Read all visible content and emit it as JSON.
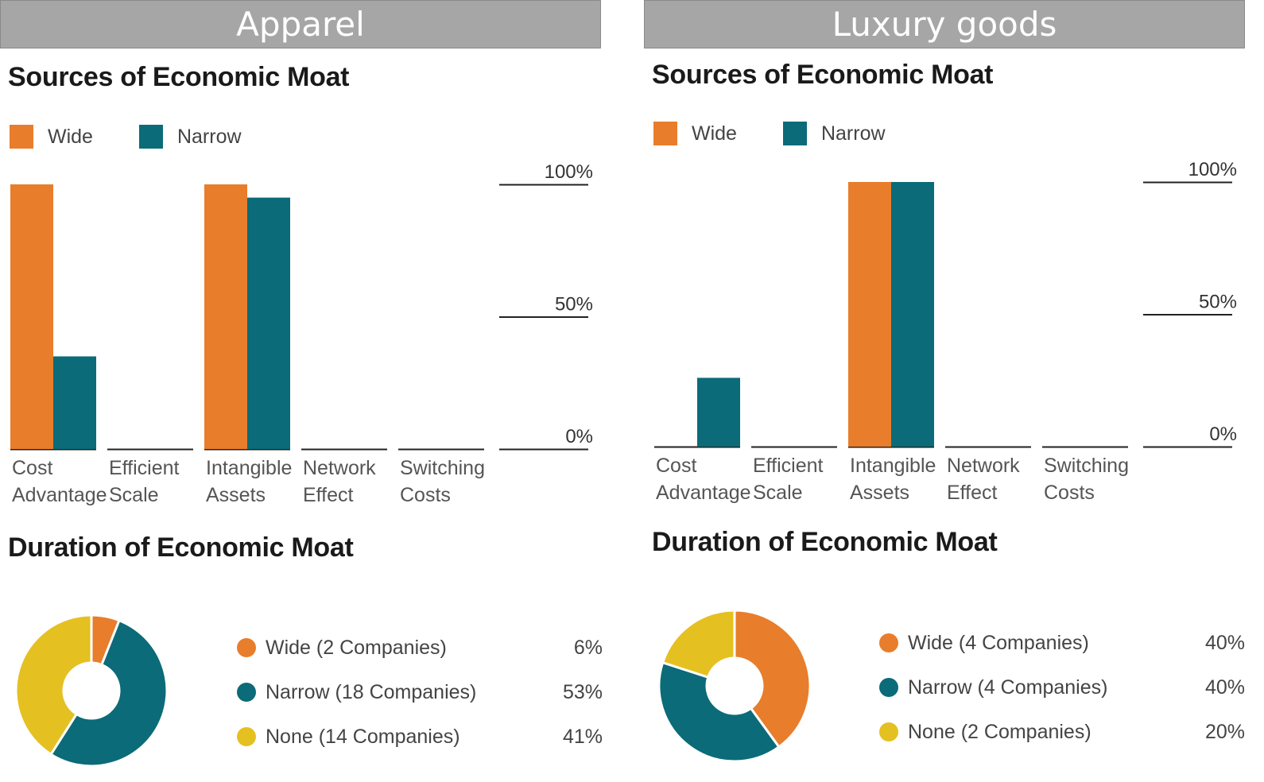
{
  "colors": {
    "wide": "#e87d2b",
    "narrow": "#0b6b78",
    "none": "#e5c021",
    "header_bg": "#a6a6a6"
  },
  "panels": [
    {
      "header": "Apparel",
      "sources_title": "Sources of Economic Moat",
      "duration_title": "Duration of Economic Moat",
      "legend": {
        "wide": "Wide",
        "narrow": "Narrow"
      },
      "y_ticks": [
        "100%",
        "50%",
        "0%"
      ],
      "duration": [
        {
          "label": "Wide (2 Companies)",
          "pct": "6%"
        },
        {
          "label": "Narrow (18 Companies)",
          "pct": "53%"
        },
        {
          "label": "None (14 Companies)",
          "pct": "41%"
        }
      ]
    },
    {
      "header": "Luxury goods",
      "sources_title": "Sources of Economic Moat",
      "duration_title": "Duration of Economic Moat",
      "legend": {
        "wide": "Wide",
        "narrow": "Narrow"
      },
      "y_ticks": [
        "100%",
        "50%",
        "0%"
      ],
      "duration": [
        {
          "label": "Wide (4 Companies)",
          "pct": "40%"
        },
        {
          "label": "Narrow (4 Companies)",
          "pct": "40%"
        },
        {
          "label": "None (2 Companies)",
          "pct": "20%"
        }
      ]
    }
  ],
  "chart_data": [
    {
      "type": "bar",
      "title": "Sources of Economic Moat",
      "categories": [
        [
          "Cost",
          "Advantage"
        ],
        [
          "Efficient",
          "Scale"
        ],
        [
          "Intangible",
          "Assets"
        ],
        [
          "Network",
          "Effect"
        ],
        [
          "Switching",
          "Costs"
        ]
      ],
      "series": [
        {
          "name": "Wide",
          "values": [
            100,
            0,
            100,
            0,
            0
          ]
        },
        {
          "name": "Narrow",
          "values": [
            35,
            0,
            95,
            0,
            0
          ]
        }
      ],
      "ylim": [
        0,
        100
      ],
      "y_ticks": [
        100,
        50,
        0
      ],
      "legend": "top-left"
    },
    {
      "type": "pie",
      "title": "Duration of Economic Moat",
      "labels": [
        "Wide (2 Companies)",
        "Narrow (18 Companies)",
        "None (14 Companies)"
      ],
      "values": [
        6,
        53,
        41
      ]
    },
    {
      "type": "bar",
      "title": "Sources of Economic Moat",
      "categories": [
        [
          "Cost",
          "Advantage"
        ],
        [
          "Efficient",
          "Scale"
        ],
        [
          "Intangible",
          "Assets"
        ],
        [
          "Network",
          "Effect"
        ],
        [
          "Switching",
          "Costs"
        ]
      ],
      "series": [
        {
          "name": "Wide",
          "values": [
            0,
            0,
            100,
            0,
            0
          ]
        },
        {
          "name": "Narrow",
          "values": [
            26,
            0,
            100,
            0,
            0
          ]
        }
      ],
      "ylim": [
        0,
        100
      ],
      "y_ticks": [
        100,
        50,
        0
      ],
      "legend": "top-left"
    },
    {
      "type": "pie",
      "title": "Duration of Economic Moat",
      "labels": [
        "Wide (4 Companies)",
        "Narrow (4 Companies)",
        "None (2 Companies)"
      ],
      "values": [
        40,
        40,
        20
      ]
    }
  ]
}
